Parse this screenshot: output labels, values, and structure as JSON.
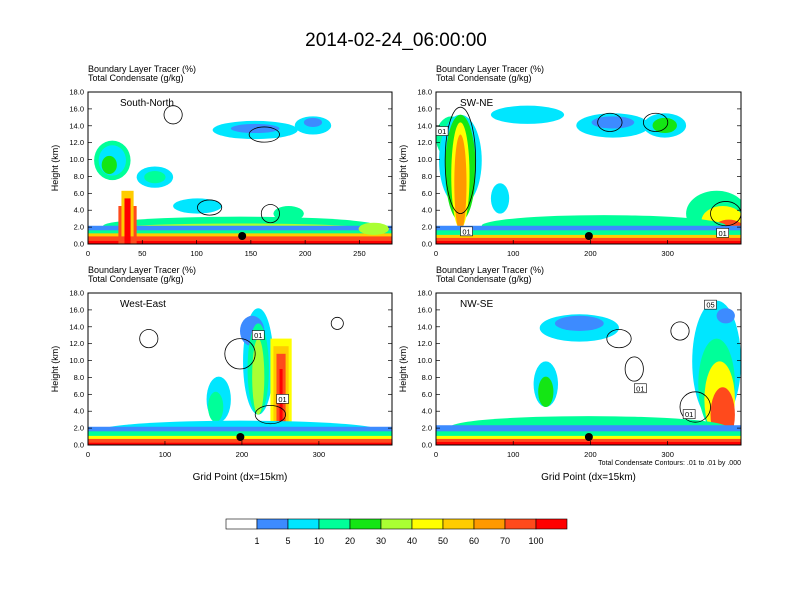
{
  "title": "2014-02-24_06:00:00",
  "colors": {
    "levels": [
      "#ffffff",
      "#3d8bff",
      "#00e6ff",
      "#00ff99",
      "#14e614",
      "#aaff33",
      "#ffff00",
      "#ffcc00",
      "#ff9900",
      "#ff4a1c",
      "#ff0000"
    ]
  },
  "colorbar": {
    "labels": [
      "1",
      "5",
      "10",
      "20",
      "30",
      "40",
      "50",
      "60",
      "70",
      "100"
    ]
  },
  "note": "Total Condensate Contours: .01 to .01 by .000",
  "chart_data": [
    {
      "type": "heatmap",
      "panel_label": "South-North",
      "title1": "Boundary Layer Tracer   (%)",
      "title2": "Total Condensate   (g/kg)",
      "ylabel": "Height (km)",
      "xlabel": "",
      "xlim": [
        0,
        280
      ],
      "ylim": [
        0,
        18
      ],
      "xticks": [
        "0",
        "50",
        "100",
        "150",
        "200",
        "250"
      ],
      "xtick_values": [
        0,
        50,
        100,
        150,
        200,
        250
      ],
      "yticks": [
        "0.0",
        "2.0",
        "4.0",
        "6.0",
        "8.0",
        "10.0",
        "12.0",
        "14.0",
        "16.0",
        "18.0"
      ],
      "marker_x": 142
    },
    {
      "type": "heatmap",
      "panel_label": "SW-NE",
      "title1": "Boundary Layer Tracer   (%)",
      "title2": "Total Condensate   (g/kg)",
      "ylabel": "Height (km)",
      "xlabel": "",
      "xlim": [
        0,
        395
      ],
      "ylim": [
        0,
        18
      ],
      "xticks": [
        "0",
        "100",
        "200",
        "300"
      ],
      "xtick_values": [
        0,
        100,
        200,
        300
      ],
      "yticks": [
        "0.0",
        "2.0",
        "4.0",
        "6.0",
        "8.0",
        "10.0",
        "12.0",
        "14.0",
        "16.0",
        "18.0"
      ],
      "contour_labels": [
        "01",
        "01",
        "01"
      ],
      "marker_x": 198
    },
    {
      "type": "heatmap",
      "panel_label": "West-East",
      "title1": "Boundary Layer Tracer   (%)",
      "title2": "Total Condensate   (g/kg)",
      "ylabel": "Height (km)",
      "xlabel": "Grid Point (dx=15km)",
      "xlim": [
        0,
        395
      ],
      "ylim": [
        0,
        18
      ],
      "xticks": [
        "0",
        "100",
        "200",
        "300"
      ],
      "xtick_values": [
        0,
        100,
        200,
        300
      ],
      "yticks": [
        "0.0",
        "2.0",
        "4.0",
        "6.0",
        "8.0",
        "10.0",
        "12.0",
        "14.0",
        "16.0",
        "18.0"
      ],
      "contour_labels": [
        "01",
        "01"
      ],
      "marker_x": 198
    },
    {
      "type": "heatmap",
      "panel_label": "NW-SE",
      "title1": "Boundary Layer Tracer   (%)",
      "title2": "Total Condensate   (g/kg)",
      "ylabel": "Height (km)",
      "xlabel": "Grid Point (dx=15km)",
      "xlim": [
        0,
        395
      ],
      "ylim": [
        0,
        18
      ],
      "xticks": [
        "0",
        "100",
        "200",
        "300"
      ],
      "xtick_values": [
        0,
        100,
        200,
        300
      ],
      "yticks": [
        "0.0",
        "2.0",
        "4.0",
        "6.0",
        "8.0",
        "10.0",
        "12.0",
        "14.0",
        "16.0",
        "18.0"
      ],
      "contour_labels": [
        "05",
        "01",
        "01"
      ],
      "marker_x": 198
    }
  ]
}
